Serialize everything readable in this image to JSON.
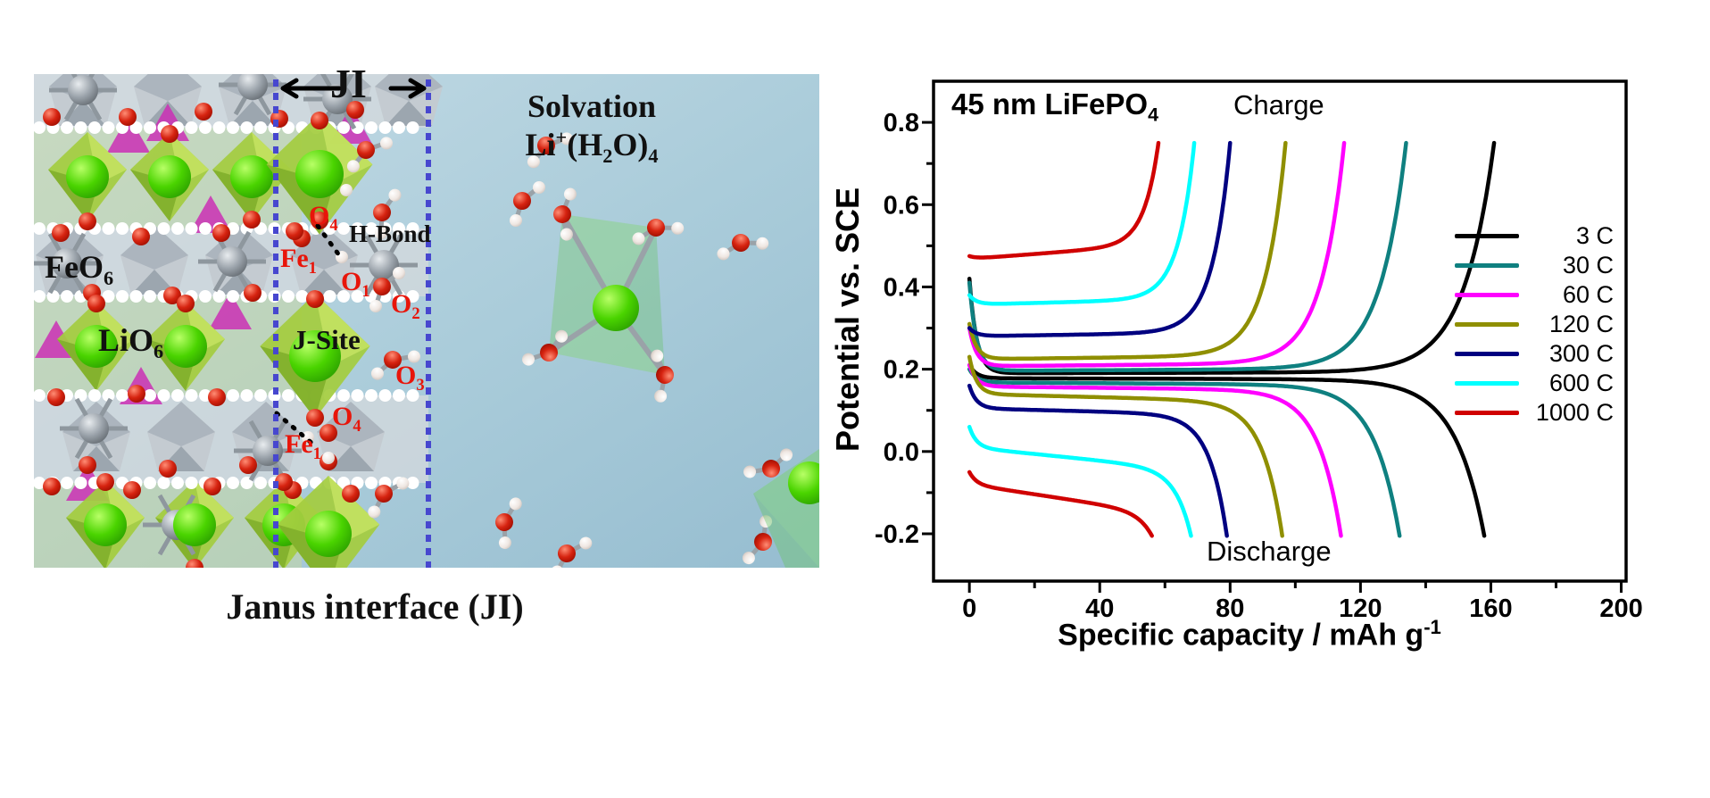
{
  "panel": {
    "ji_label": "JI",
    "solvation_line1": "Solvation",
    "solvation_line2": "Li^+^(H_2_O)_4_",
    "caption": "Janus interface (JI)",
    "labels": {
      "feo6": "FeO_6_",
      "lio6": "LiO_6_",
      "jsite": "J-Site",
      "hbond": "H-Bond",
      "fe1_top": "Fe_1_",
      "fe1_bottom": "Fe_1_",
      "o1": "O_1_",
      "o2": "O_2_",
      "o3": "O_3_",
      "o4_top": "O_4_",
      "o4_bottom": "O_4_"
    },
    "colors": {
      "red_label": "#e8150a",
      "dotted_guide": "#4747cf",
      "background_top": "#c2d9e3",
      "background_bottom": "#9cc2d3"
    }
  },
  "chart_data": {
    "type": "line",
    "title": "45 nm LiFePO_4_",
    "charge_annotation": "Charge",
    "discharge_annotation": "Discharge",
    "xlabel": "Specific capacity / mAh g^-1^",
    "ylabel": "Potential vs. SCE",
    "xlim": [
      -11,
      201.5
    ],
    "ylim": [
      -0.315,
      0.9
    ],
    "grid": false,
    "legend_position": "inside-right",
    "x_major_ticks": [
      0,
      40,
      80,
      120,
      160,
      200
    ],
    "x_minor_ticks": [
      20,
      60,
      100,
      140,
      180
    ],
    "x_tick_labels": [
      "0",
      "40",
      "80",
      "120",
      "160",
      "200"
    ],
    "y_major_ticks": [
      0.8,
      0.6,
      0.4,
      0.2,
      0.0,
      -0.2
    ],
    "y_minor_ticks": [
      0.7,
      0.5,
      0.3,
      0.1,
      -0.1
    ],
    "y_tick_labels": [
      "0.8",
      "0.6",
      "0.4",
      "0.2",
      "0.0",
      "-0.2"
    ],
    "series": [
      {
        "name": "3C",
        "label": "3 C",
        "color": "#000000",
        "charge": {
          "start_v": 0.42,
          "plateau_v": 0.19,
          "slope": 2e-05,
          "capacity": 161,
          "end_v": 0.75
        },
        "discharge": {
          "start_v": 0.21,
          "plateau_v": 0.178,
          "slope": -2e-05,
          "capacity": 158,
          "end_v": -0.205
        }
      },
      {
        "name": "30C",
        "label": "30 C",
        "color": "#0f8080",
        "charge": {
          "start_v": 0.41,
          "plateau_v": 0.196,
          "slope": 4e-05,
          "capacity": 134,
          "end_v": 0.75
        },
        "discharge": {
          "start_v": 0.2,
          "plateau_v": 0.168,
          "slope": -5e-05,
          "capacity": 132,
          "end_v": -0.205
        }
      },
      {
        "name": "60C",
        "label": "60 C",
        "color": "#ff00ff",
        "charge": {
          "start_v": 0.3,
          "plateau_v": 0.207,
          "slope": 7e-05,
          "capacity": 115,
          "end_v": 0.75
        },
        "discharge": {
          "start_v": 0.21,
          "plateau_v": 0.158,
          "slope": -8e-05,
          "capacity": 114,
          "end_v": -0.205
        }
      },
      {
        "name": "120C",
        "label": "120 C",
        "color": "#8f8f00",
        "charge": {
          "start_v": 0.31,
          "plateau_v": 0.224,
          "slope": 0.0001,
          "capacity": 97,
          "end_v": 0.75
        },
        "discharge": {
          "start_v": 0.23,
          "plateau_v": 0.14,
          "slope": -0.0002,
          "capacity": 96,
          "end_v": -0.205
        }
      },
      {
        "name": "300C",
        "label": "300 C",
        "color": "#000080",
        "charge": {
          "start_v": 0.3,
          "plateau_v": 0.28,
          "slope": 0.00012,
          "capacity": 80,
          "end_v": 0.75
        },
        "discharge": {
          "start_v": 0.16,
          "plateau_v": 0.105,
          "slope": -0.0002,
          "capacity": 79,
          "end_v": -0.205
        }
      },
      {
        "name": "600C",
        "label": "600 C",
        "color": "#00ffff",
        "charge": {
          "start_v": 0.38,
          "plateau_v": 0.357,
          "slope": 0.0002,
          "capacity": 69,
          "end_v": 0.75
        },
        "discharge": {
          "start_v": 0.06,
          "plateau_v": 0.01,
          "slope": -0.0008,
          "capacity": 68,
          "end_v": -0.205
        }
      },
      {
        "name": "1000C",
        "label": "1000 C",
        "color": "#d00000",
        "charge": {
          "start_v": 0.475,
          "plateau_v": 0.468,
          "slope": 0.0006,
          "capacity": 58,
          "end_v": 0.75
        },
        "discharge": {
          "start_v": -0.05,
          "plateau_v": -0.08,
          "slope": -0.0012,
          "capacity": 56,
          "end_v": -0.205
        }
      }
    ]
  }
}
